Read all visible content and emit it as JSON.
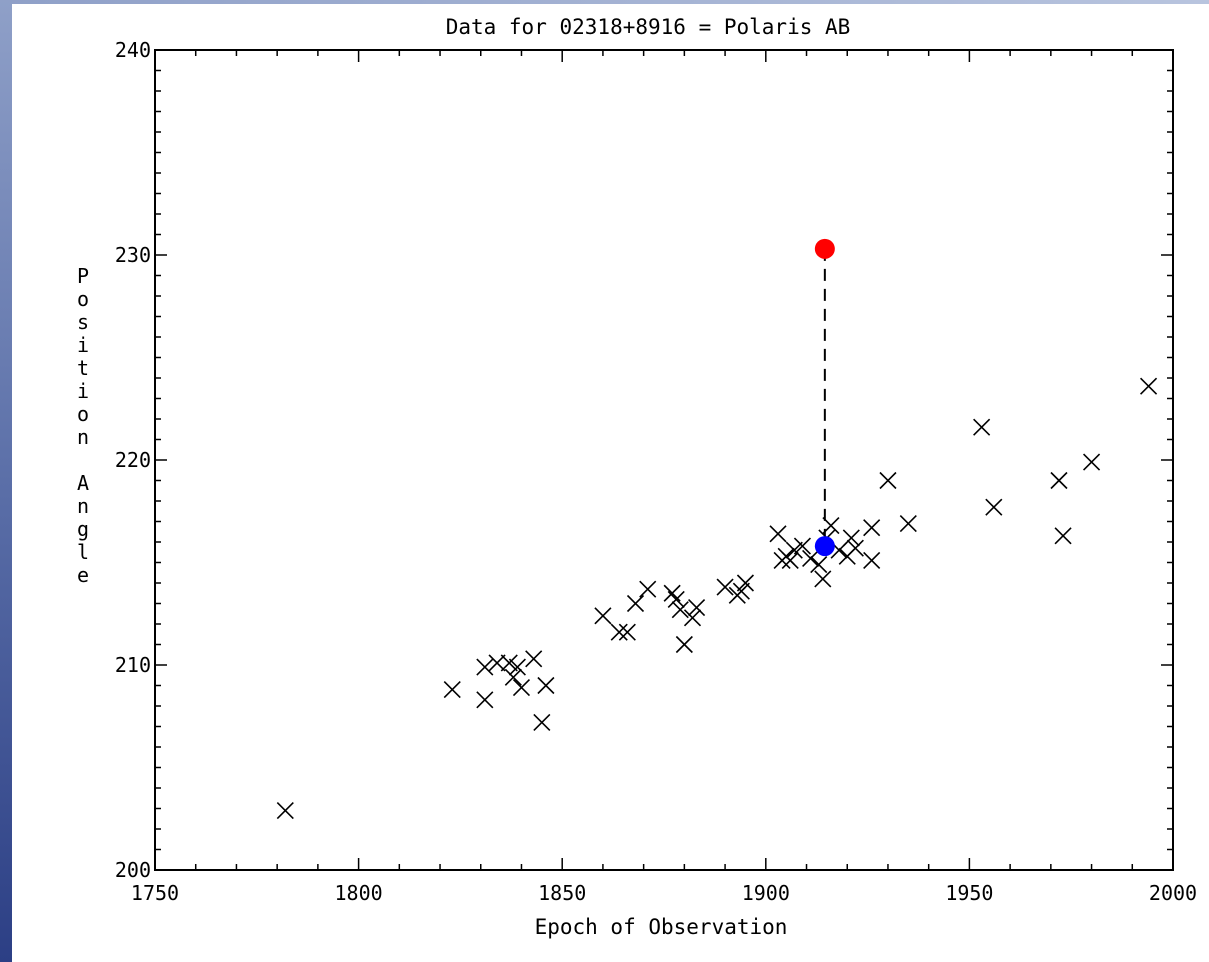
{
  "chart_data": {
    "type": "scatter",
    "title": "Data for 02318+8916 = Polaris AB",
    "xlabel": "Epoch of Observation",
    "ylabel": "Position Angle",
    "xlim": [
      1750,
      2000
    ],
    "ylim": [
      200,
      240
    ],
    "xticks": [
      1750,
      1800,
      1850,
      1900,
      1950,
      2000
    ],
    "yticks": [
      200,
      210,
      220,
      230,
      240
    ],
    "grid": false,
    "series": [
      {
        "marker": "x",
        "color": "#000000",
        "points": [
          [
            1782,
            202.9
          ],
          [
            1823,
            208.8
          ],
          [
            1831,
            209.9
          ],
          [
            1831,
            208.3
          ],
          [
            1834,
            210.1
          ],
          [
            1837,
            210.1
          ],
          [
            1838,
            209.4
          ],
          [
            1839,
            209.9
          ],
          [
            1840,
            208.9
          ],
          [
            1843,
            210.3
          ],
          [
            1845,
            207.2
          ],
          [
            1846,
            209.0
          ],
          [
            1860,
            212.4
          ],
          [
            1864,
            211.6
          ],
          [
            1866,
            211.6
          ],
          [
            1868,
            213.0
          ],
          [
            1871,
            213.7
          ],
          [
            1877,
            213.5
          ],
          [
            1878,
            213.2
          ],
          [
            1879,
            212.7
          ],
          [
            1880,
            211.0
          ],
          [
            1882,
            212.3
          ],
          [
            1883,
            212.8
          ],
          [
            1890,
            213.8
          ],
          [
            1893,
            213.4
          ],
          [
            1894,
            213.6
          ],
          [
            1895,
            214.0
          ],
          [
            1903,
            216.4
          ],
          [
            1904,
            215.1
          ],
          [
            1905,
            215.3
          ],
          [
            1906,
            215.1
          ],
          [
            1907,
            215.6
          ],
          [
            1909,
            215.8
          ],
          [
            1911,
            215.2
          ],
          [
            1913,
            214.9
          ],
          [
            1914,
            214.2
          ],
          [
            1915,
            216.2
          ],
          [
            1916,
            216.8
          ],
          [
            1918,
            215.6
          ],
          [
            1920,
            215.3
          ],
          [
            1921,
            216.2
          ],
          [
            1922,
            215.7
          ],
          [
            1926,
            216.7
          ],
          [
            1926,
            215.1
          ],
          [
            1930,
            219.0
          ],
          [
            1935,
            216.9
          ],
          [
            1953,
            221.6
          ],
          [
            1956,
            217.7
          ],
          [
            1972,
            219.0
          ],
          [
            1973,
            216.3
          ],
          [
            1980,
            219.9
          ],
          [
            1994,
            223.6
          ]
        ]
      }
    ],
    "highlights": [
      {
        "x": 1914.5,
        "y": 230.3,
        "color": "#ff0000",
        "marker": "filled-circle"
      },
      {
        "x": 1914.5,
        "y": 215.8,
        "color": "#0000ff",
        "marker": "filled-circle"
      }
    ],
    "connector": {
      "from": [
        1914.5,
        230.3
      ],
      "to": [
        1914.5,
        215.8
      ],
      "style": "dashed",
      "color": "#000000"
    }
  }
}
